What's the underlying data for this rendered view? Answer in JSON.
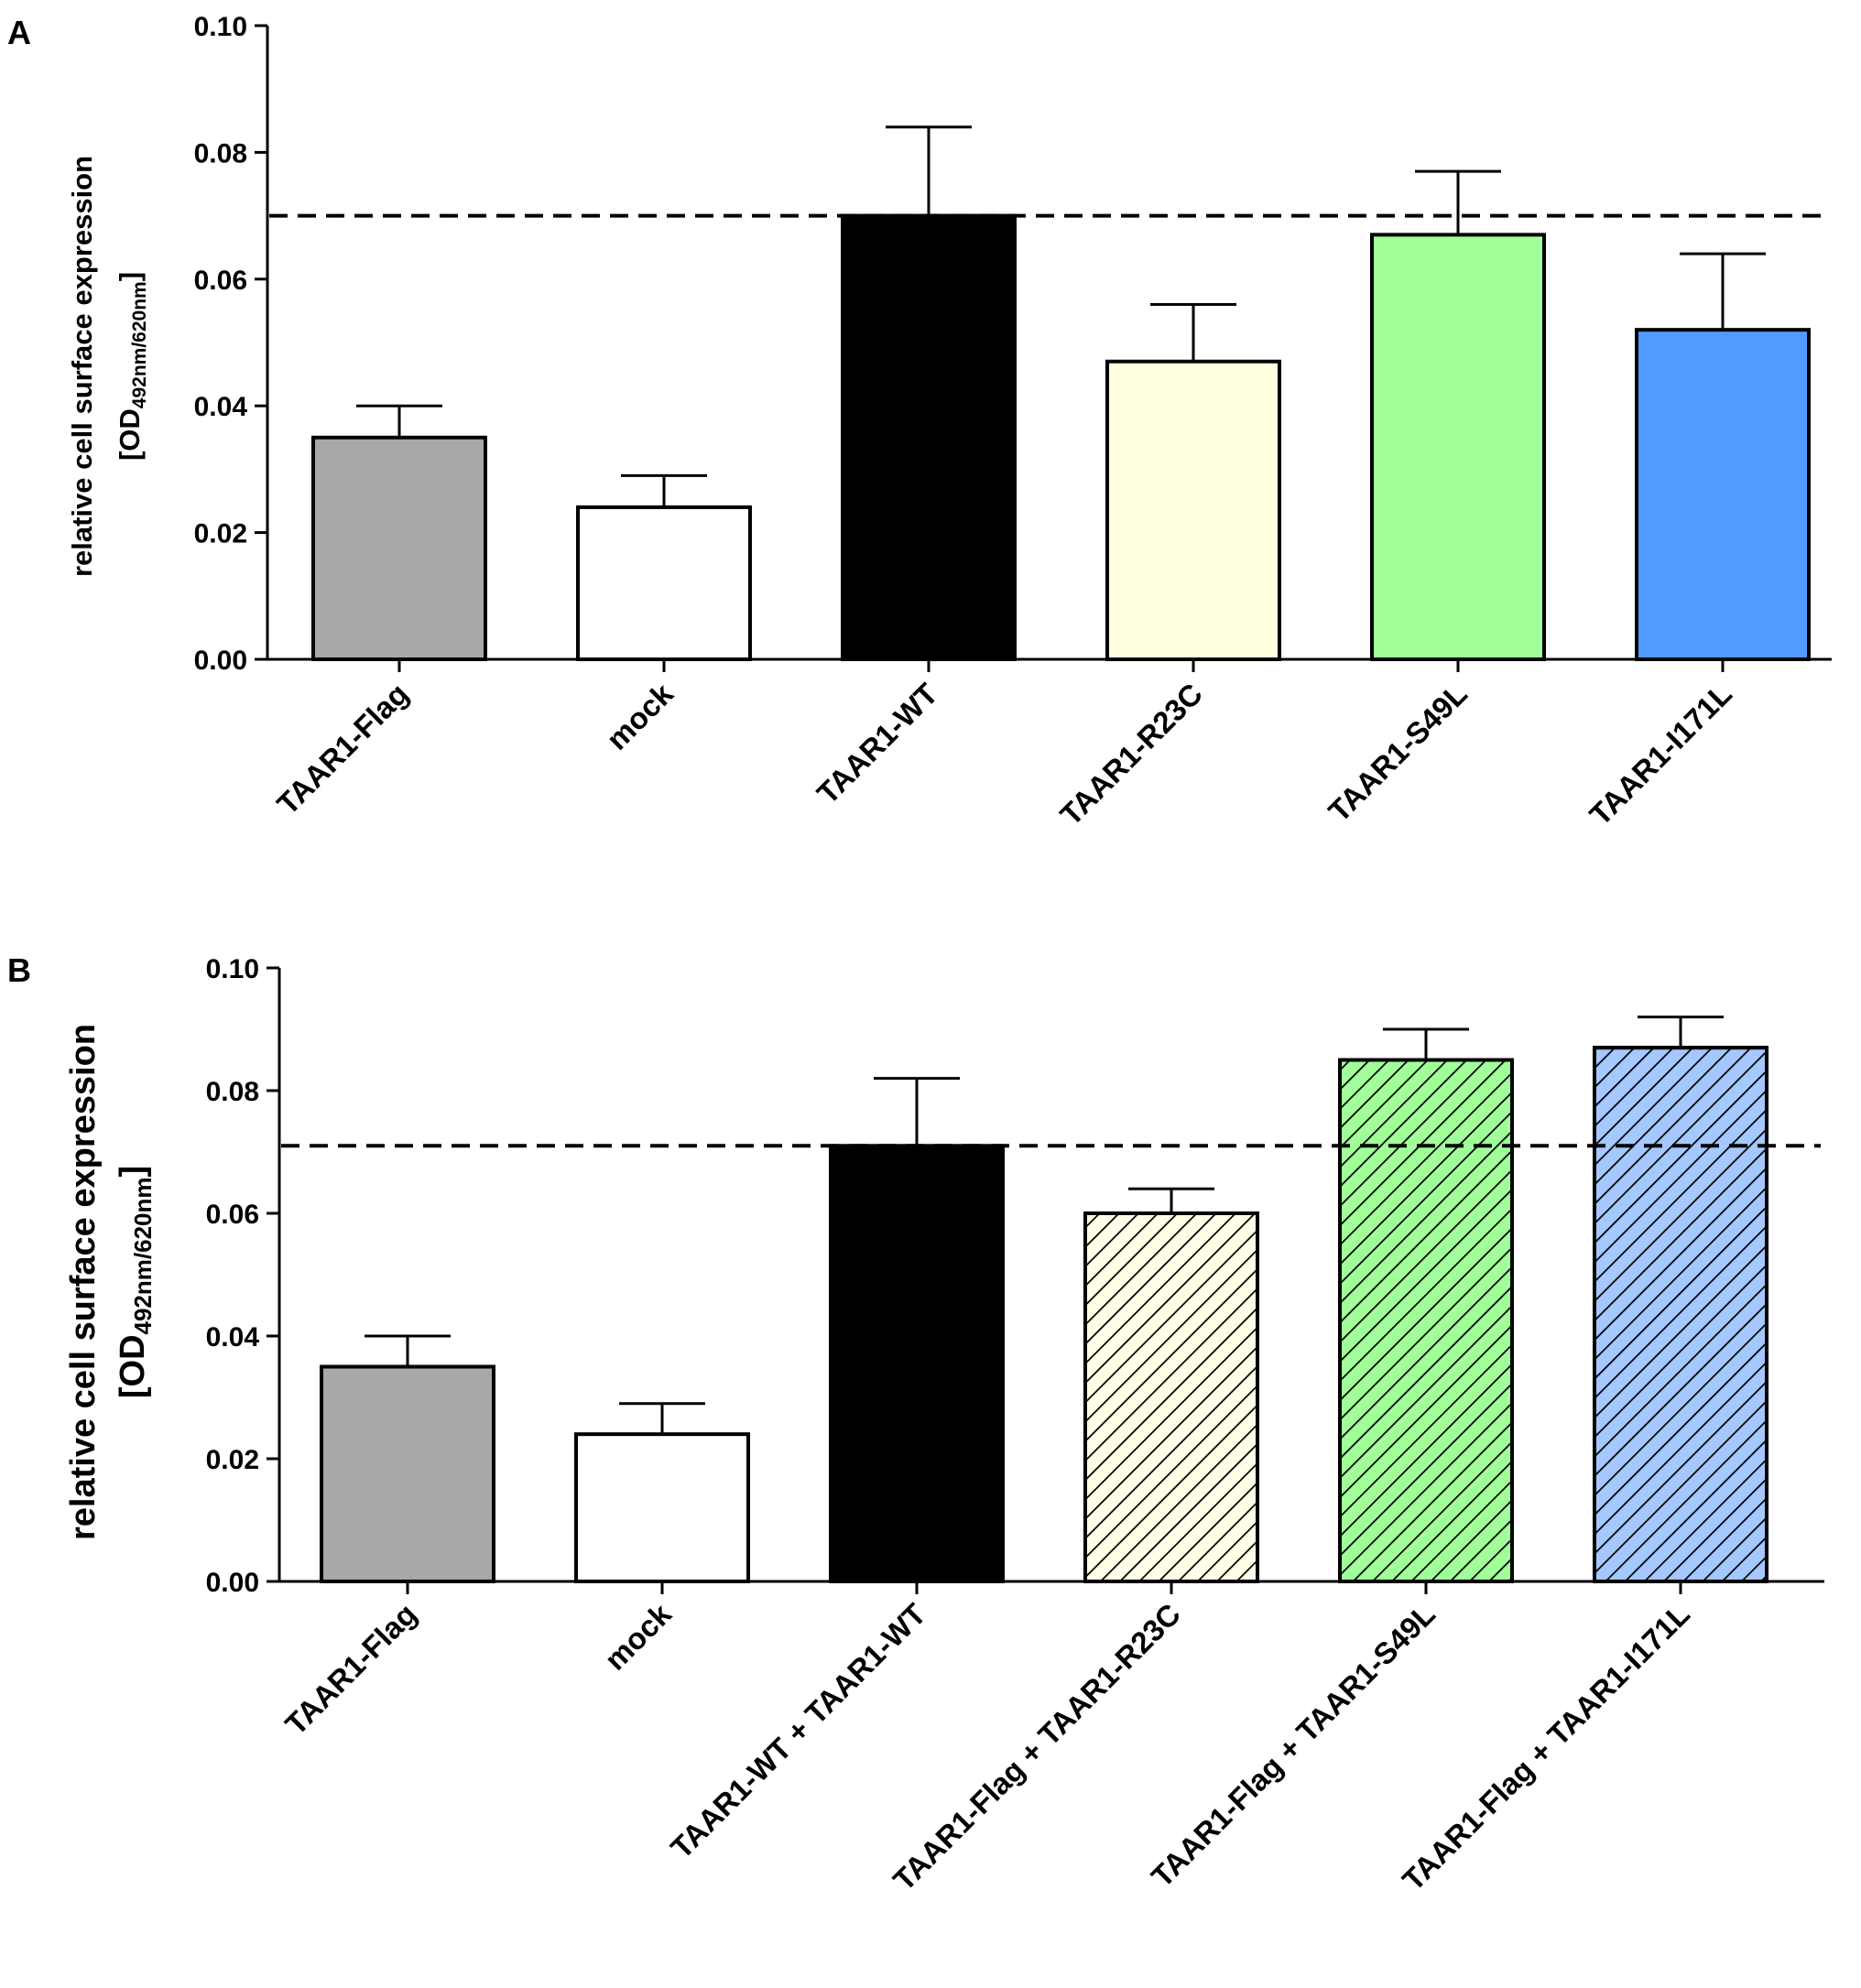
{
  "chart_data": [
    {
      "type": "bar",
      "panel": "A",
      "ylabel_main": "relative cell surface expression",
      "ylabel_unit": {
        "open": "[OD",
        "sub": "492nm/620nm",
        "close": "]"
      },
      "ylim": [
        0,
        0.1
      ],
      "yticks": [
        "0.00",
        "0.02",
        "0.04",
        "0.06",
        "0.08",
        "0.10"
      ],
      "reference_line": 0.07,
      "categories": [
        "TAAR1-Flag",
        "mock",
        "TAAR1-WT",
        "TAAR1-R23C",
        "TAAR1-S49L",
        "TAAR1-I171L"
      ],
      "values": [
        0.035,
        0.024,
        0.07,
        0.047,
        0.067,
        0.052
      ],
      "errors": [
        0.005,
        0.005,
        0.014,
        0.009,
        0.01,
        0.012
      ],
      "colors": [
        "#a8a8a8",
        "#ffffff",
        "#000000",
        "#ffffe0",
        "#a0ff98",
        "#4f9bff"
      ],
      "hatched": [
        false,
        false,
        false,
        false,
        false,
        false
      ]
    },
    {
      "type": "bar",
      "panel": "B",
      "ylabel_main": "relative cell surface expression",
      "ylabel_unit": {
        "open": "[OD",
        "sub": "492nm/620nm",
        "close": "]"
      },
      "ylim": [
        0,
        0.1
      ],
      "yticks": [
        "0.00",
        "0.02",
        "0.04",
        "0.06",
        "0.08",
        "0.10"
      ],
      "reference_line": 0.071,
      "categories": [
        "TAAR1-Flag",
        "mock",
        "TAAR1-WT + TAAR1-WT",
        "TAAR1-Flag + TAAR1-R23C",
        "TAAR1-Flag + TAAR1-S49L",
        "TAAR1-Flag + TAAR1-I171L"
      ],
      "values": [
        0.035,
        0.024,
        0.071,
        0.06,
        0.085,
        0.087
      ],
      "errors": [
        0.005,
        0.005,
        0.011,
        0.004,
        0.005,
        0.005
      ],
      "colors": [
        "#a8a8a8",
        "#ffffff",
        "#000000",
        "#ffffe8",
        "#a0ff98",
        "#a4c8ff"
      ],
      "hatched": [
        false,
        false,
        false,
        true,
        true,
        true
      ]
    }
  ]
}
